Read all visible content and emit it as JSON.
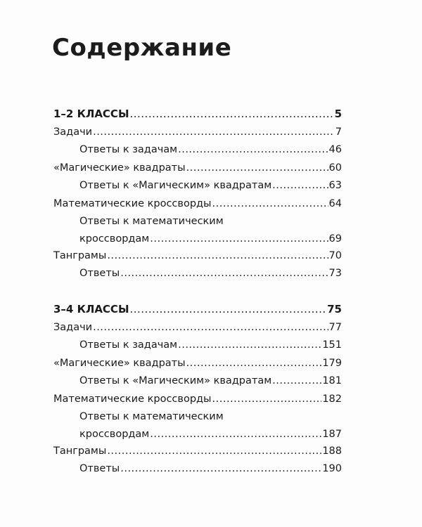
{
  "title": "Содержание",
  "sections": [
    {
      "heading": {
        "label": "1–2  КЛАССЫ",
        "page": "5"
      },
      "entries": [
        {
          "label": "Задачи",
          "page": "7",
          "level": 0
        },
        {
          "label": "Ответы к задачам",
          "page": "46",
          "level": 1
        },
        {
          "label": "«Магические» квадраты",
          "page": "60",
          "level": 0
        },
        {
          "label": "Ответы к «Магическим» квадратам",
          "page": "63",
          "level": 1
        },
        {
          "label": "Математические кроссворды",
          "page": "64",
          "level": 0
        },
        {
          "label": "Ответы к математическим",
          "label2": "кроссвордам",
          "page": "69",
          "level": 1
        },
        {
          "label": "Танграмы",
          "page": "70",
          "level": 0
        },
        {
          "label": "Ответы",
          "page": "73",
          "level": 1
        }
      ]
    },
    {
      "heading": {
        "label": "3–4  КЛАССЫ",
        "page": "75"
      },
      "entries": [
        {
          "label": "Задачи",
          "page": "77",
          "level": 0
        },
        {
          "label": "Ответы к задачам",
          "page": "151",
          "level": 1
        },
        {
          "label": "«Магические» квадраты",
          "page": "179",
          "level": 0
        },
        {
          "label": "Ответы к «Магическим» квадратам",
          "page": "181",
          "level": 1
        },
        {
          "label": "Математические кроссворды",
          "page": "182",
          "level": 0
        },
        {
          "label": "Ответы к математическим",
          "label2": "кроссвордам",
          "page": "187",
          "level": 1
        },
        {
          "label": "Танграмы",
          "page": "188",
          "level": 0
        },
        {
          "label": "Ответы",
          "page": "190",
          "level": 1
        }
      ]
    }
  ]
}
